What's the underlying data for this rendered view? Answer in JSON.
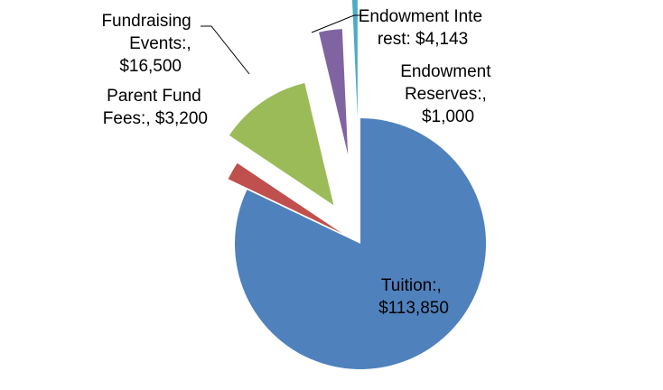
{
  "chart_data": {
    "type": "pie",
    "exploded": true,
    "slices": [
      {
        "category": "Tuition",
        "value": 113850,
        "label_lines": [
          "Tuition:,",
          "$113,850"
        ],
        "color": "#4F81BD"
      },
      {
        "category": "Parent Fund Fees",
        "value": 3200,
        "label_lines": [
          "Parent Fund",
          "Fees:, $3,200"
        ],
        "color": "#C0504D"
      },
      {
        "category": "Fundraising Events",
        "value": 16500,
        "label_lines": [
          "Fundraising",
          "Events:,",
          "$16,500"
        ],
        "color": "#9BBB59"
      },
      {
        "category": "Endowment Interest",
        "value": 4143,
        "label_lines": [
          "Endowment Inte",
          "rest: $4,143"
        ],
        "color": "#8064A2"
      },
      {
        "category": "Endowment Reserves",
        "value": 1000,
        "label_lines": [
          "Endowment",
          "Reserves:,",
          "$1,000"
        ],
        "color": "#4BACC6"
      }
    ],
    "legend": "none"
  }
}
